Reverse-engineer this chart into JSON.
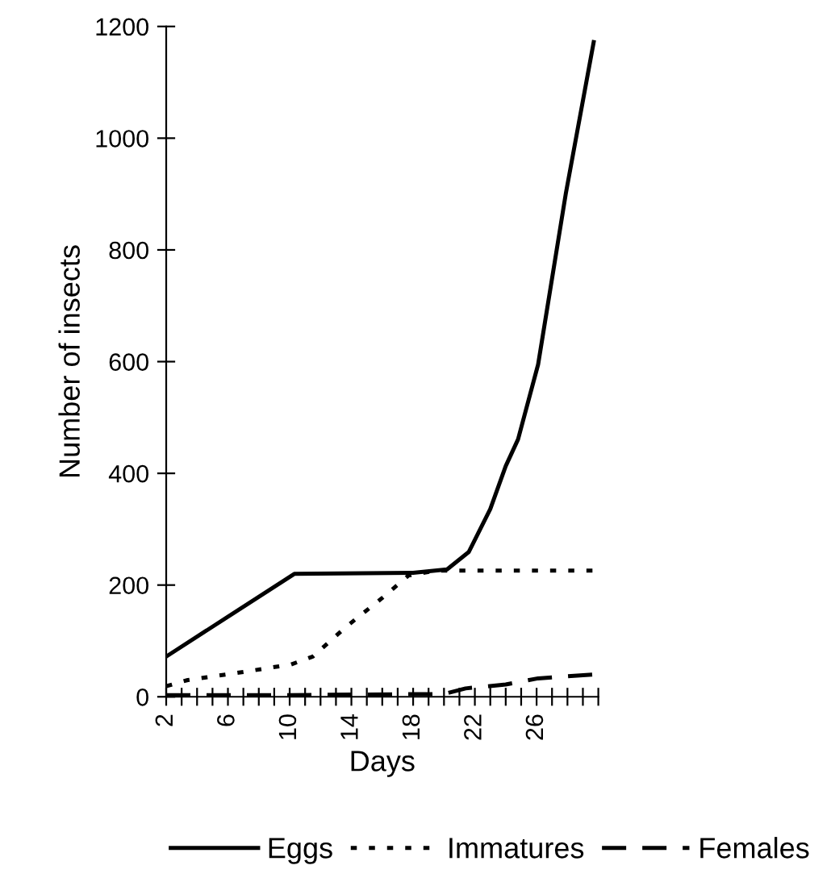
{
  "chart_data": {
    "type": "line",
    "xlabel": "Days",
    "ylabel": "Number of insects",
    "xlim": [
      2,
      30
    ],
    "ylim": [
      0,
      1200
    ],
    "xticks": [
      2,
      {
        "value": 3,
        "label": null
      },
      {
        "value": 4,
        "label": null
      },
      {
        "value": 5,
        "label": null
      },
      6,
      {
        "value": 7,
        "label": null
      },
      {
        "value": 8,
        "label": null
      },
      {
        "value": 9,
        "label": null
      },
      10,
      {
        "value": 11,
        "label": null
      },
      {
        "value": 12,
        "label": null
      },
      {
        "value": 13,
        "label": null
      },
      14,
      {
        "value": 15,
        "label": null
      },
      {
        "value": 16,
        "label": null
      },
      {
        "value": 17,
        "label": null
      },
      18,
      {
        "value": 19,
        "label": null
      },
      {
        "value": 20,
        "label": null
      },
      {
        "value": 21,
        "label": null
      },
      22,
      {
        "value": 23,
        "label": null
      },
      {
        "value": 24,
        "label": null
      },
      {
        "value": 25,
        "label": null
      },
      26,
      {
        "value": 27,
        "label": null
      },
      {
        "value": 28,
        "label": null
      },
      {
        "value": 29,
        "label": null
      },
      {
        "value": 30,
        "label": null
      }
    ],
    "yticks": [
      0,
      200,
      400,
      600,
      800,
      1000,
      1200
    ],
    "grid": false,
    "legend": "bottom",
    "marker": "none",
    "series": [
      {
        "name": "Eggs",
        "color": "#000000",
        "line_style": "solid",
        "x": [
          2,
          10.3,
          18,
          20.2,
          21.6,
          23,
          24,
          24.8,
          26.1,
          27.9,
          29.7
        ],
        "values": [
          72,
          220,
          222,
          228,
          259,
          336,
          413,
          461,
          595,
          902,
          1172
        ]
      },
      {
        "name": "Immatures",
        "color": "#000000",
        "line_style": "dotted",
        "x": [
          2,
          3.4,
          6.9,
          10.1,
          11.5,
          13.6,
          16,
          17.7,
          19.5,
          29.7
        ],
        "values": [
          19,
          30,
          44,
          58,
          72,
          124,
          177,
          217,
          226,
          226
        ]
      },
      {
        "name": "Females",
        "color": "#000000",
        "line_style": "dashed",
        "x": [
          2,
          10,
          20,
          21.4,
          24,
          26.1,
          29.7
        ],
        "values": [
          3,
          3,
          5,
          15,
          22,
          33,
          40
        ]
      }
    ]
  }
}
